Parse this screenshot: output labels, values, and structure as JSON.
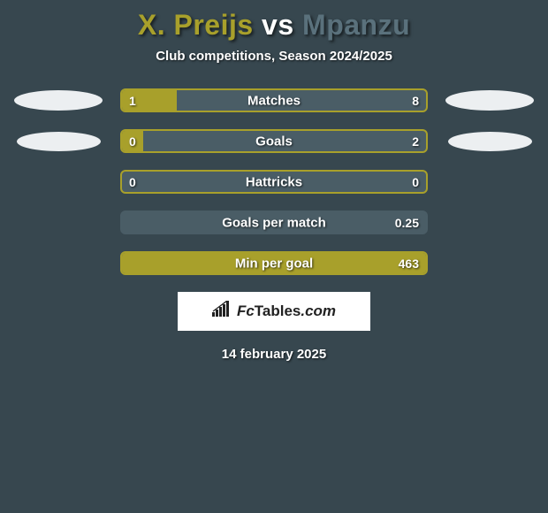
{
  "title": {
    "player1": "X. Preijs",
    "vs": "vs",
    "player2": "Mpanzu",
    "player1_color": "#a8a02b",
    "player2_color": "#5a717c"
  },
  "subtitle": "Club competitions, Season 2024/2025",
  "background_color": "#37474f",
  "bar_fill_color": "#a8a02b",
  "bar_empty_color": "#4a5d66",
  "bar_border_color": "#a8a02b",
  "ellipse_color": "#eceff1",
  "rows": [
    {
      "label": "Matches",
      "left_value": "1",
      "right_value": "8",
      "fill_percent": 18,
      "show_left_ellipse": true,
      "show_right_ellipse": true,
      "ellipse_size": "large",
      "border_mode": "fill"
    },
    {
      "label": "Goals",
      "left_value": "0",
      "right_value": "2",
      "fill_percent": 7,
      "show_left_ellipse": true,
      "show_right_ellipse": true,
      "ellipse_size": "small",
      "border_mode": "fill"
    },
    {
      "label": "Hattricks",
      "left_value": "0",
      "right_value": "0",
      "fill_percent": 0,
      "show_left_ellipse": false,
      "show_right_ellipse": false,
      "border_mode": "fill"
    },
    {
      "label": "Goals per match",
      "left_value": "",
      "right_value": "0.25",
      "fill_percent": 0,
      "show_left_ellipse": false,
      "show_right_ellipse": false,
      "border_mode": "empty"
    },
    {
      "label": "Min per goal",
      "left_value": "",
      "right_value": "463",
      "fill_percent": 100,
      "show_left_ellipse": false,
      "show_right_ellipse": false,
      "border_mode": "fill"
    }
  ],
  "logo": {
    "icon_name": "bar-chart-icon",
    "text_fc": "Fc",
    "text_tables": "Tables",
    "text_com": ".com",
    "icon_color": "#222222",
    "bg_color": "#ffffff"
  },
  "date": "14 february 2025"
}
